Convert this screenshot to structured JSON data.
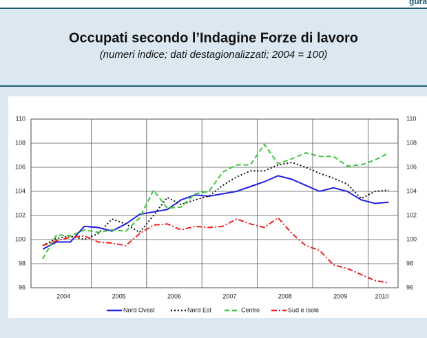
{
  "header": {
    "corner_label": "gura"
  },
  "chart_data": {
    "type": "line",
    "title": "Occupati secondo l’Indagine Forze di lavoro",
    "subtitle": "(numeri indice; dati destagionalizzati; 2004 = 100)",
    "categories": [
      "2004",
      null,
      null,
      null,
      "2005",
      null,
      null,
      null,
      "2006",
      null,
      null,
      null,
      "2007",
      null,
      null,
      null,
      "2008",
      null,
      null,
      null,
      "2009",
      null,
      null,
      null,
      "2010",
      null
    ],
    "ylim": [
      96,
      110
    ],
    "yticks": [
      96,
      98,
      100,
      102,
      104,
      106,
      108,
      110
    ],
    "grid": true,
    "legend": "bottom",
    "series": [
      {
        "name": "Nord Ovest",
        "color": "#1f1fe0",
        "style": "solid",
        "values": [
          99.2,
          99.8,
          99.8,
          101.1,
          101.0,
          100.7,
          101.3,
          102.1,
          102.3,
          102.5,
          103.3,
          103.7,
          103.6,
          103.8,
          104.0,
          104.4,
          104.8,
          105.3,
          105.0,
          104.5,
          104.0,
          104.3,
          104.0,
          103.3,
          103.0,
          103.1
        ]
      },
      {
        "name": "Nord Est",
        "color": "#111111",
        "style": "dotted",
        "values": [
          99.5,
          100.1,
          100.3,
          100.0,
          100.5,
          101.7,
          101.3,
          100.6,
          102.0,
          103.5,
          102.9,
          103.3,
          103.6,
          104.5,
          105.2,
          105.7,
          105.7,
          106.2,
          106.4,
          106.0,
          105.5,
          105.1,
          104.6,
          103.4,
          104.0,
          104.1
        ]
      },
      {
        "name": "Centro",
        "color": "#3cc43c",
        "style": "dashed",
        "values": [
          98.4,
          100.4,
          100.3,
          100.8,
          100.6,
          100.8,
          100.7,
          101.8,
          104.1,
          102.6,
          102.7,
          103.8,
          104.0,
          105.6,
          106.2,
          106.2,
          107.9,
          106.3,
          106.7,
          107.2,
          106.9,
          106.9,
          106.1,
          106.2,
          106.6,
          107.2
        ]
      },
      {
        "name": "Sud e Isole",
        "color": "#f02020",
        "style": "dashdot",
        "values": [
          99.5,
          99.9,
          100.2,
          100.3,
          99.8,
          99.7,
          99.5,
          100.5,
          101.2,
          101.3,
          100.8,
          101.1,
          101.0,
          101.1,
          101.7,
          101.3,
          101.0,
          101.8,
          100.5,
          99.5,
          99.1,
          97.9,
          97.6,
          97.1,
          96.6,
          96.4
        ]
      }
    ]
  }
}
